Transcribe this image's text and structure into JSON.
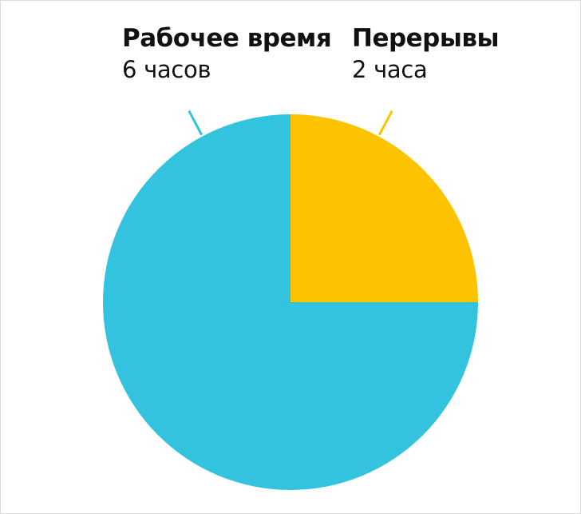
{
  "chart_data": {
    "type": "pie",
    "title": "",
    "categories": [
      "Рабочее время",
      "Перерывы"
    ],
    "values": [
      6,
      2
    ],
    "value_labels": [
      "6 часов",
      "2 часа"
    ],
    "start_angle_deg": 0,
    "direction": "clockwise",
    "colors": {
      "Рабочее время": "#33c3df",
      "Перерывы": "#fec300"
    },
    "legend": "none",
    "labels_placement": "above-slices-with-leader-lines"
  }
}
